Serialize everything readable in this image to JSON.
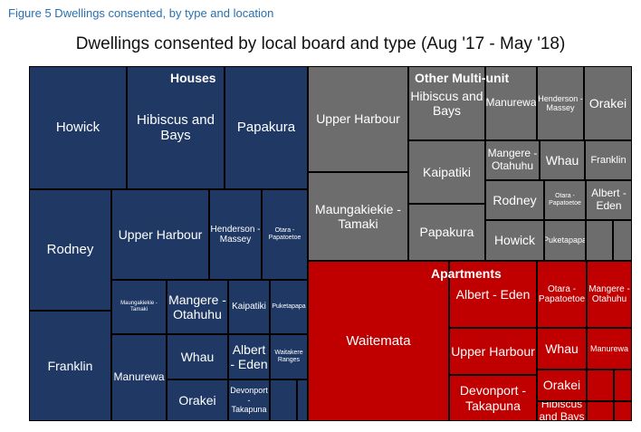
{
  "caption": "Figure 5 Dwellings consented, by type and location",
  "chart_data": {
    "type": "treemap",
    "title": "Dwellings consented by local board and type (Aug '17 - May '18)",
    "groups": [
      {
        "name": "Houses",
        "color": "#1f3864",
        "items": [
          {
            "label": "Howick"
          },
          {
            "label": "Hibiscus and Bays"
          },
          {
            "label": "Papakura"
          },
          {
            "label": "Rodney"
          },
          {
            "label": "Upper Harbour"
          },
          {
            "label": "Henderson - Massey"
          },
          {
            "label": "Otara - Papatoetoe"
          },
          {
            "label": "Franklin"
          },
          {
            "label": "Maungakiekie - Tamaki"
          },
          {
            "label": "Mangere - Otahuhu"
          },
          {
            "label": "Kaipatiki"
          },
          {
            "label": "Puketapapa"
          },
          {
            "label": "Whau"
          },
          {
            "label": "Albert - Eden"
          },
          {
            "label": "Waitakere Ranges"
          },
          {
            "label": "Manurewa"
          },
          {
            "label": "Orakei"
          },
          {
            "label": "Devonport - Takapuna"
          },
          {
            "label": ""
          },
          {
            "label": ""
          }
        ]
      },
      {
        "name": "Other Multi-unit",
        "color": "#6d6d6d",
        "items": [
          {
            "label": "Upper Harbour"
          },
          {
            "label": "Hibiscus and Bays"
          },
          {
            "label": "Manurewa"
          },
          {
            "label": "Henderson - Massey"
          },
          {
            "label": "Orakei"
          },
          {
            "label": "Maungakiekie - Tamaki"
          },
          {
            "label": "Kaipatiki"
          },
          {
            "label": "Mangere - Otahuhu"
          },
          {
            "label": "Whau"
          },
          {
            "label": "Franklin"
          },
          {
            "label": "Papakura"
          },
          {
            "label": "Rodney"
          },
          {
            "label": "Otara - Papatoetoe"
          },
          {
            "label": "Albert - Eden"
          },
          {
            "label": "Howick"
          },
          {
            "label": "Puketapapa"
          },
          {
            "label": ""
          },
          {
            "label": ""
          }
        ]
      },
      {
        "name": "Apartments",
        "color": "#c00000",
        "items": [
          {
            "label": "Waitemata"
          },
          {
            "label": "Albert - Eden"
          },
          {
            "label": "Otara - Papatoetoe"
          },
          {
            "label": "Mangere - Otahuhu"
          },
          {
            "label": "Upper Harbour"
          },
          {
            "label": "Whau"
          },
          {
            "label": "Manurewa"
          },
          {
            "label": "Devonport - Takapuna"
          },
          {
            "label": "Orakei"
          },
          {
            "label": "Hibiscus and Bays"
          },
          {
            "label": ""
          },
          {
            "label": ""
          },
          {
            "label": ""
          },
          {
            "label": ""
          }
        ]
      }
    ]
  }
}
